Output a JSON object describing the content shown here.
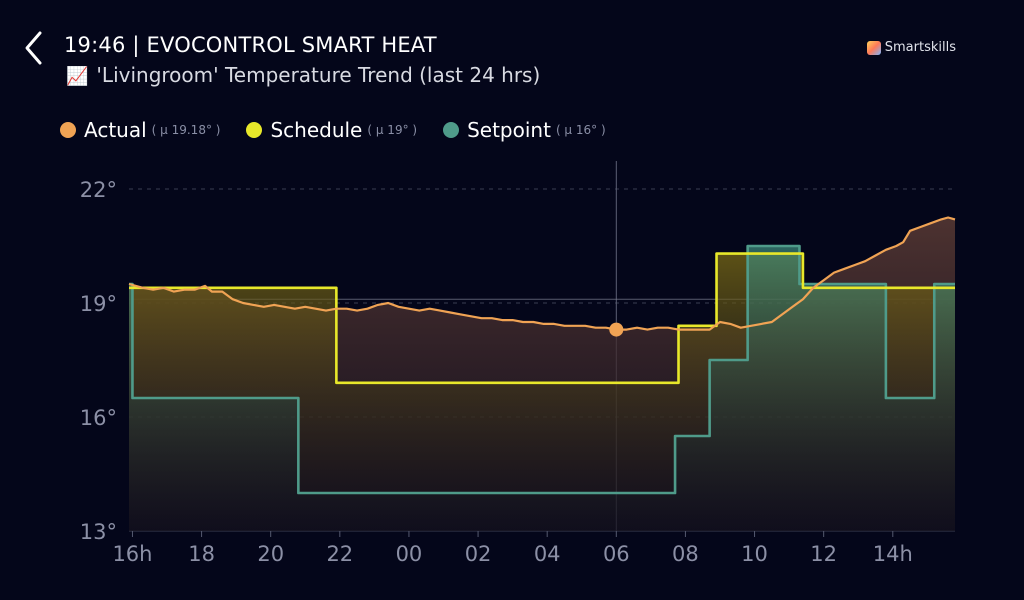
{
  "header": {
    "title": "19:46 | EVOCONTROL SMART HEAT",
    "subtitle_emoji": "📈",
    "subtitle": "'Livingroom' Temperature Trend (last 24 hrs)",
    "brand": "Smartskills"
  },
  "legend": [
    {
      "name": "Actual",
      "mean": "( µ 19.18° )",
      "color": "#f0a354"
    },
    {
      "name": "Schedule",
      "mean": "( µ 19° )",
      "color": "#e8e82a"
    },
    {
      "name": "Setpoint",
      "mean": "( µ 16° )",
      "color": "#4f9b8a"
    }
  ],
  "chart_data": {
    "type": "area",
    "title": "'Livingroom' Temperature Trend (last 24 hrs)",
    "xlabel": "",
    "ylabel": "",
    "x_ticks": [
      "16h",
      "18",
      "20",
      "22",
      "00",
      "02",
      "04",
      "06",
      "08",
      "10",
      "12",
      "14h"
    ],
    "y_ticks": [
      "13°",
      "16°",
      "19°",
      "22°"
    ],
    "xlim": [
      -0.1,
      23.8
    ],
    "ylim": [
      13,
      22
    ],
    "grid": true,
    "cursor_x": 14.0,
    "cursor_value": 18.3,
    "series": [
      {
        "name": "Actual",
        "color": "#f0a354",
        "points": [
          [
            -0.1,
            19.5
          ],
          [
            0.3,
            19.4
          ],
          [
            0.6,
            19.35
          ],
          [
            0.9,
            19.4
          ],
          [
            1.2,
            19.3
          ],
          [
            1.5,
            19.35
          ],
          [
            1.8,
            19.35
          ],
          [
            2.1,
            19.45
          ],
          [
            2.3,
            19.3
          ],
          [
            2.6,
            19.3
          ],
          [
            2.9,
            19.1
          ],
          [
            3.2,
            19.0
          ],
          [
            3.5,
            18.95
          ],
          [
            3.8,
            18.9
          ],
          [
            4.1,
            18.95
          ],
          [
            4.4,
            18.9
          ],
          [
            4.7,
            18.85
          ],
          [
            5.0,
            18.9
          ],
          [
            5.3,
            18.85
          ],
          [
            5.6,
            18.8
          ],
          [
            5.9,
            18.85
          ],
          [
            6.2,
            18.85
          ],
          [
            6.5,
            18.8
          ],
          [
            6.8,
            18.85
          ],
          [
            7.1,
            18.95
          ],
          [
            7.4,
            19.0
          ],
          [
            7.7,
            18.9
          ],
          [
            8.0,
            18.85
          ],
          [
            8.3,
            18.8
          ],
          [
            8.6,
            18.85
          ],
          [
            8.9,
            18.8
          ],
          [
            9.2,
            18.75
          ],
          [
            9.5,
            18.7
          ],
          [
            9.8,
            18.65
          ],
          [
            10.1,
            18.6
          ],
          [
            10.4,
            18.6
          ],
          [
            10.7,
            18.55
          ],
          [
            11.0,
            18.55
          ],
          [
            11.3,
            18.5
          ],
          [
            11.6,
            18.5
          ],
          [
            11.9,
            18.45
          ],
          [
            12.2,
            18.45
          ],
          [
            12.5,
            18.4
          ],
          [
            12.8,
            18.4
          ],
          [
            13.1,
            18.4
          ],
          [
            13.4,
            18.35
          ],
          [
            13.7,
            18.35
          ],
          [
            14.0,
            18.3
          ],
          [
            14.3,
            18.3
          ],
          [
            14.6,
            18.35
          ],
          [
            14.9,
            18.3
          ],
          [
            15.2,
            18.35
          ],
          [
            15.5,
            18.35
          ],
          [
            15.8,
            18.3
          ],
          [
            16.1,
            18.3
          ],
          [
            16.4,
            18.3
          ],
          [
            16.7,
            18.3
          ],
          [
            17.0,
            18.5
          ],
          [
            17.3,
            18.45
          ],
          [
            17.6,
            18.35
          ],
          [
            17.9,
            18.4
          ],
          [
            18.2,
            18.45
          ],
          [
            18.5,
            18.5
          ],
          [
            18.8,
            18.7
          ],
          [
            19.1,
            18.9
          ],
          [
            19.4,
            19.1
          ],
          [
            19.7,
            19.4
          ],
          [
            20.0,
            19.6
          ],
          [
            20.3,
            19.8
          ],
          [
            20.6,
            19.9
          ],
          [
            20.9,
            20.0
          ],
          [
            21.2,
            20.1
          ],
          [
            21.5,
            20.25
          ],
          [
            21.8,
            20.4
          ],
          [
            22.1,
            20.5
          ],
          [
            22.3,
            20.6
          ],
          [
            22.5,
            20.9
          ],
          [
            22.8,
            21.0
          ],
          [
            23.1,
            21.1
          ],
          [
            23.4,
            21.2
          ],
          [
            23.6,
            21.25
          ],
          [
            23.8,
            21.2
          ]
        ]
      },
      {
        "name": "Schedule",
        "color": "#e8e82a",
        "points": [
          [
            -0.1,
            19.4
          ],
          [
            5.9,
            19.4
          ],
          [
            5.9,
            16.9
          ],
          [
            15.8,
            16.9
          ],
          [
            15.8,
            18.4
          ],
          [
            16.9,
            18.4
          ],
          [
            16.9,
            20.3
          ],
          [
            19.4,
            20.3
          ],
          [
            19.4,
            19.4
          ],
          [
            23.8,
            19.4
          ]
        ]
      },
      {
        "name": "Setpoint",
        "color": "#4f9b8a",
        "points": [
          [
            -0.1,
            19.5
          ],
          [
            0.0,
            19.5
          ],
          [
            0.0,
            16.5
          ],
          [
            4.8,
            16.5
          ],
          [
            4.8,
            14.0
          ],
          [
            15.7,
            14.0
          ],
          [
            15.7,
            15.5
          ],
          [
            16.7,
            15.5
          ],
          [
            16.7,
            17.5
          ],
          [
            17.8,
            17.5
          ],
          [
            17.8,
            20.5
          ],
          [
            19.3,
            20.5
          ],
          [
            19.3,
            19.5
          ],
          [
            21.8,
            19.5
          ],
          [
            21.8,
            16.5
          ],
          [
            23.2,
            16.5
          ],
          [
            23.2,
            19.5
          ],
          [
            23.8,
            19.5
          ]
        ]
      }
    ]
  }
}
